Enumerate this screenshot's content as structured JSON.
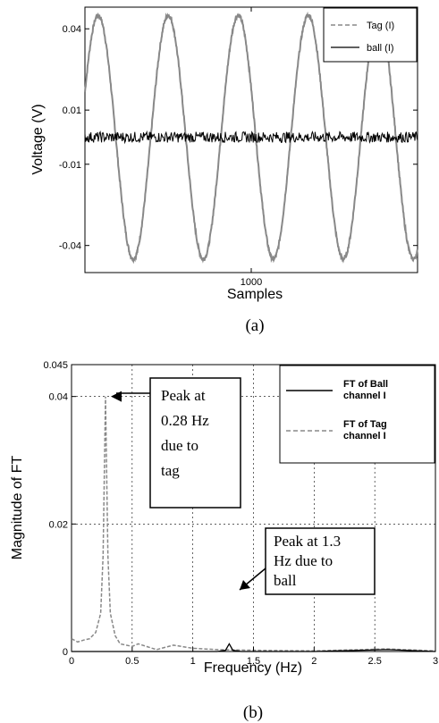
{
  "chart_data": [
    {
      "type": "line",
      "caption": "(a)",
      "xlabel": "Samples",
      "ylabel": "Voltage (V)",
      "xticks": [
        1000
      ],
      "yticks": [
        -0.04,
        -0.01,
        0.01,
        0.04
      ],
      "xlim": [
        0,
        2000
      ],
      "ylim": [
        -0.05,
        0.048
      ],
      "legend_position": "top-right",
      "series": [
        {
          "name": "Tag (I)",
          "style": "dashed",
          "color": "#888888",
          "form": "sinusoid",
          "amplitude": 0.045,
          "offset": 0.0,
          "cycles": 4.75,
          "phase_start": "peak at x≈80"
        },
        {
          "name": "ball (I)",
          "style": "solid",
          "color": "#000000",
          "form": "noise",
          "level": 0.0,
          "noise": 0.002
        }
      ]
    },
    {
      "type": "line",
      "caption": "(b)",
      "xlabel": "Frequency (Hz)",
      "ylabel": "Magnitude of FT",
      "xticks": [
        0,
        0.5,
        1,
        1.5,
        2,
        2.5,
        3
      ],
      "yticks": [
        0,
        0.02,
        0.04,
        0.045
      ],
      "xlim": [
        0,
        3
      ],
      "ylim": [
        0,
        0.045
      ],
      "grid": true,
      "legend_position": "top-right",
      "series": [
        {
          "name": "FT of Ball channel I",
          "style": "solid",
          "color": "#000000",
          "x": [
            0,
            0.25,
            0.5,
            1.2,
            1.27,
            1.3,
            1.33,
            1.4,
            2.0,
            2.6,
            3.0
          ],
          "y": [
            0,
            0,
            0,
            0,
            0.0002,
            0.0012,
            0.0002,
            0,
            0,
            0.0003,
            0
          ]
        },
        {
          "name": "FT of Tag channel I",
          "style": "dashed",
          "color": "#888888",
          "x": [
            0,
            0.05,
            0.1,
            0.15,
            0.2,
            0.24,
            0.26,
            0.28,
            0.3,
            0.32,
            0.36,
            0.4,
            0.5,
            0.55,
            0.7,
            0.84,
            1.0,
            1.2,
            1.5,
            2.0,
            2.6,
            3.0
          ],
          "y": [
            0.002,
            0.0015,
            0.0018,
            0.002,
            0.003,
            0.006,
            0.015,
            0.04,
            0.015,
            0.006,
            0.0025,
            0.0012,
            0.0008,
            0.0012,
            0.0003,
            0.001,
            0.0005,
            0.0003,
            0.0002,
            0.0001,
            0.0004,
            0.0001
          ]
        }
      ],
      "annotations": [
        {
          "text_lines": [
            "Peak at",
            "0.28 Hz",
            "due to",
            "tag"
          ],
          "points_to": [
            0.28,
            0.04
          ]
        },
        {
          "text_lines": [
            "Peak at 1.3",
            "Hz due to",
            "ball"
          ],
          "points_to": [
            1.3,
            0.0012
          ]
        }
      ]
    }
  ]
}
